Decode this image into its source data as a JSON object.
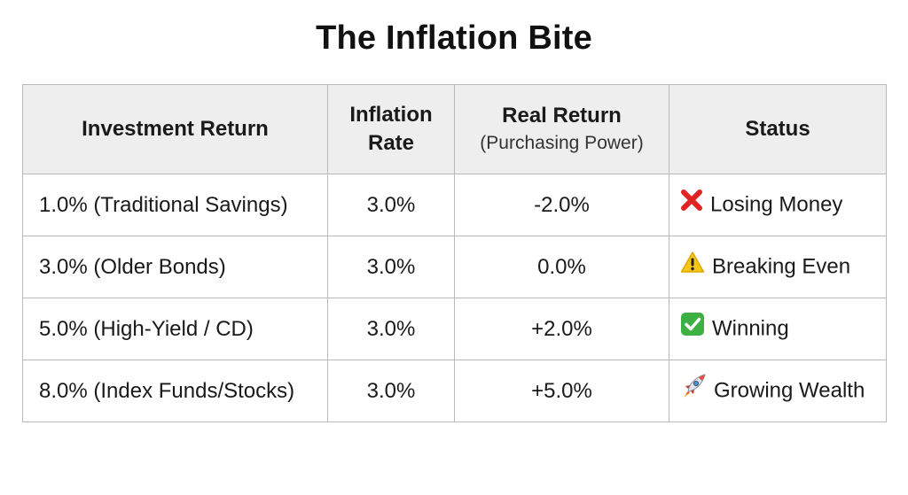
{
  "title": "The Inflation Bite",
  "columns": {
    "investment": "Investment Return",
    "inflation_line1": "Inflation",
    "inflation_line2": "Rate",
    "real_line1": "Real Return",
    "real_line2": "(Purchasing Power)",
    "status": "Status"
  },
  "rows": [
    {
      "investment": "1.0% (Traditional Savings)",
      "inflation": "3.0%",
      "real": "-2.0%",
      "status": "Losing Money",
      "icon": "cross-mark-icon",
      "color": "#e02424"
    },
    {
      "investment": "3.0% (Older Bonds)",
      "inflation": "3.0%",
      "real": "0.0%",
      "status": "Breaking Even",
      "icon": "warning-icon",
      "color": "#f5c518"
    },
    {
      "investment": "5.0% (High-Yield / CD)",
      "inflation": "3.0%",
      "real": "+2.0%",
      "status": "Winning",
      "icon": "check-mark-icon",
      "color": "#3cb043"
    },
    {
      "investment": "8.0% (Index Funds/Stocks)",
      "inflation": "3.0%",
      "real": "+5.0%",
      "status": "Growing Wealth",
      "icon": "rocket-icon",
      "color": "#c0392b"
    }
  ]
}
